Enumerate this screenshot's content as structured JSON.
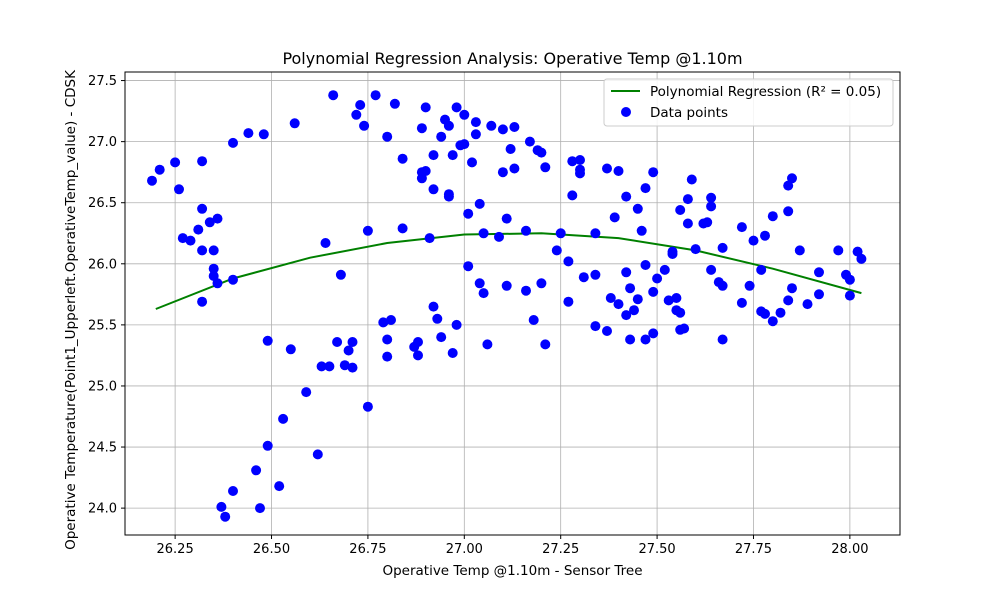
{
  "chart_data": {
    "type": "scatter",
    "title": "Polynomial Regression Analysis: Operative Temp @1.10m",
    "xlabel": "Operative Temp @1.10m - Sensor Tree",
    "ylabel": "Operative Temperature(Point1_Upperleft.OperativeTemp_value) - CDSK",
    "xlim": [
      26.12,
      28.13
    ],
    "ylim": [
      23.78,
      27.57
    ],
    "xticks": [
      26.25,
      26.5,
      26.75,
      27.0,
      27.25,
      27.5,
      27.75,
      28.0
    ],
    "xtick_labels": [
      "26.25",
      "26.50",
      "26.75",
      "27.00",
      "27.25",
      "27.50",
      "27.75",
      "28.00"
    ],
    "yticks": [
      24.0,
      24.5,
      25.0,
      25.5,
      26.0,
      26.5,
      27.0,
      27.5
    ],
    "ytick_labels": [
      "24.0",
      "24.5",
      "25.0",
      "25.5",
      "26.0",
      "26.5",
      "27.0",
      "27.5"
    ],
    "grid": true,
    "legend_position": "top-right",
    "legend": [
      {
        "label": "Polynomial Regression (R² = 0.05)",
        "kind": "line",
        "color": "#008000"
      },
      {
        "label": "Data points",
        "kind": "marker",
        "color": "#0000ff"
      }
    ],
    "regression": {
      "name": "Polynomial Regression (R² = 0.05)",
      "color": "#008000",
      "x": [
        26.2,
        26.4,
        26.6,
        26.8,
        27.0,
        27.2,
        27.4,
        27.6,
        27.8,
        28.03
      ],
      "y": [
        25.63,
        25.88,
        26.05,
        26.17,
        26.24,
        26.25,
        26.21,
        26.11,
        25.96,
        25.76
      ]
    },
    "series": [
      {
        "name": "Data points",
        "color": "#0000ff",
        "points": [
          [
            26.19,
            26.68
          ],
          [
            26.21,
            26.77
          ],
          [
            26.25,
            26.83
          ],
          [
            26.26,
            26.61
          ],
          [
            26.27,
            26.21
          ],
          [
            26.29,
            26.19
          ],
          [
            26.31,
            26.28
          ],
          [
            26.32,
            26.84
          ],
          [
            26.32,
            26.45
          ],
          [
            26.32,
            26.11
          ],
          [
            26.32,
            25.69
          ],
          [
            26.34,
            26.34
          ],
          [
            26.35,
            25.9
          ],
          [
            26.35,
            26.11
          ],
          [
            26.35,
            25.96
          ],
          [
            26.36,
            26.37
          ],
          [
            26.36,
            25.84
          ],
          [
            26.37,
            24.01
          ],
          [
            26.38,
            23.93
          ],
          [
            26.4,
            25.87
          ],
          [
            26.4,
            24.14
          ],
          [
            26.4,
            26.99
          ],
          [
            26.44,
            27.07
          ],
          [
            26.46,
            24.31
          ],
          [
            26.47,
            24.0
          ],
          [
            26.48,
            27.06
          ],
          [
            26.49,
            25.37
          ],
          [
            26.49,
            24.51
          ],
          [
            26.52,
            24.18
          ],
          [
            26.53,
            24.73
          ],
          [
            26.55,
            25.3
          ],
          [
            26.56,
            27.15
          ],
          [
            26.59,
            24.95
          ],
          [
            26.62,
            24.44
          ],
          [
            26.63,
            25.16
          ],
          [
            26.64,
            26.17
          ],
          [
            26.65,
            25.16
          ],
          [
            26.66,
            27.38
          ],
          [
            26.67,
            25.36
          ],
          [
            26.68,
            25.91
          ],
          [
            26.69,
            25.17
          ],
          [
            26.7,
            25.29
          ],
          [
            26.71,
            25.36
          ],
          [
            26.71,
            25.15
          ],
          [
            26.72,
            27.22
          ],
          [
            26.73,
            27.3
          ],
          [
            26.74,
            27.13
          ],
          [
            26.75,
            24.83
          ],
          [
            26.75,
            26.27
          ],
          [
            26.77,
            27.38
          ],
          [
            26.79,
            25.52
          ],
          [
            26.8,
            25.38
          ],
          [
            26.8,
            25.24
          ],
          [
            26.8,
            27.04
          ],
          [
            26.81,
            25.54
          ],
          [
            26.82,
            27.31
          ],
          [
            26.84,
            26.29
          ],
          [
            26.84,
            26.86
          ],
          [
            26.87,
            25.32
          ],
          [
            26.88,
            25.36
          ],
          [
            26.88,
            25.25
          ],
          [
            26.89,
            27.11
          ],
          [
            26.89,
            26.75
          ],
          [
            26.89,
            26.7
          ],
          [
            26.9,
            27.28
          ],
          [
            26.9,
            26.76
          ],
          [
            26.91,
            26.21
          ],
          [
            26.92,
            26.61
          ],
          [
            26.92,
            26.89
          ],
          [
            26.92,
            25.65
          ],
          [
            26.93,
            25.55
          ],
          [
            26.94,
            25.4
          ],
          [
            26.94,
            27.04
          ],
          [
            26.95,
            27.18
          ],
          [
            26.96,
            26.57
          ],
          [
            26.96,
            26.55
          ],
          [
            26.96,
            27.13
          ],
          [
            26.97,
            26.89
          ],
          [
            26.97,
            25.27
          ],
          [
            26.98,
            27.28
          ],
          [
            26.98,
            25.5
          ],
          [
            26.99,
            26.97
          ],
          [
            27.0,
            26.98
          ],
          [
            27.0,
            27.22
          ],
          [
            27.01,
            26.41
          ],
          [
            27.01,
            25.98
          ],
          [
            27.02,
            26.83
          ],
          [
            27.03,
            27.16
          ],
          [
            27.03,
            27.06
          ],
          [
            27.04,
            25.84
          ],
          [
            27.04,
            26.49
          ],
          [
            27.05,
            26.25
          ],
          [
            27.05,
            25.76
          ],
          [
            27.06,
            25.34
          ],
          [
            27.07,
            27.13
          ],
          [
            27.09,
            26.22
          ],
          [
            27.1,
            27.1
          ],
          [
            27.1,
            26.75
          ],
          [
            27.11,
            26.37
          ],
          [
            27.11,
            25.82
          ],
          [
            27.12,
            26.94
          ],
          [
            27.13,
            26.78
          ],
          [
            27.13,
            27.12
          ],
          [
            27.16,
            25.78
          ],
          [
            27.16,
            26.27
          ],
          [
            27.17,
            27.0
          ],
          [
            27.18,
            25.54
          ],
          [
            27.19,
            26.93
          ],
          [
            27.2,
            25.84
          ],
          [
            27.2,
            26.91
          ],
          [
            27.21,
            25.34
          ],
          [
            27.21,
            26.79
          ],
          [
            27.24,
            26.11
          ],
          [
            27.25,
            26.25
          ],
          [
            27.27,
            26.02
          ],
          [
            27.27,
            25.69
          ],
          [
            27.28,
            26.84
          ],
          [
            27.28,
            26.56
          ],
          [
            27.3,
            26.85
          ],
          [
            27.3,
            26.77
          ],
          [
            27.3,
            26.74
          ],
          [
            27.31,
            25.89
          ],
          [
            27.34,
            25.49
          ],
          [
            27.34,
            26.25
          ],
          [
            27.34,
            25.91
          ],
          [
            27.37,
            26.78
          ],
          [
            27.37,
            25.45
          ],
          [
            27.38,
            25.72
          ],
          [
            27.39,
            26.38
          ],
          [
            27.4,
            25.67
          ],
          [
            27.4,
            26.76
          ],
          [
            27.42,
            25.58
          ],
          [
            27.42,
            26.55
          ],
          [
            27.42,
            25.93
          ],
          [
            27.43,
            25.38
          ],
          [
            27.43,
            25.8
          ],
          [
            27.44,
            25.62
          ],
          [
            27.45,
            25.71
          ],
          [
            27.45,
            26.45
          ],
          [
            27.46,
            26.27
          ],
          [
            27.47,
            25.99
          ],
          [
            27.47,
            25.38
          ],
          [
            27.47,
            26.62
          ],
          [
            27.49,
            25.43
          ],
          [
            27.49,
            25.77
          ],
          [
            27.49,
            26.75
          ],
          [
            27.5,
            25.88
          ],
          [
            27.52,
            25.95
          ],
          [
            27.53,
            25.7
          ],
          [
            27.54,
            26.08
          ],
          [
            27.54,
            26.1
          ],
          [
            27.55,
            25.62
          ],
          [
            27.55,
            25.72
          ],
          [
            27.56,
            25.6
          ],
          [
            27.56,
            26.44
          ],
          [
            27.56,
            25.46
          ],
          [
            27.57,
            25.47
          ],
          [
            27.58,
            26.33
          ],
          [
            27.58,
            26.53
          ],
          [
            27.59,
            26.69
          ],
          [
            27.6,
            26.12
          ],
          [
            27.62,
            26.33
          ],
          [
            27.63,
            26.34
          ],
          [
            27.64,
            26.47
          ],
          [
            27.64,
            26.54
          ],
          [
            27.64,
            25.95
          ],
          [
            27.66,
            25.85
          ],
          [
            27.67,
            25.82
          ],
          [
            27.67,
            25.38
          ],
          [
            27.67,
            26.13
          ],
          [
            27.72,
            26.3
          ],
          [
            27.72,
            25.68
          ],
          [
            27.74,
            25.82
          ],
          [
            27.75,
            26.19
          ],
          [
            27.77,
            25.61
          ],
          [
            27.77,
            25.95
          ],
          [
            27.78,
            25.59
          ],
          [
            27.78,
            26.23
          ],
          [
            27.8,
            26.39
          ],
          [
            27.8,
            25.53
          ],
          [
            27.82,
            25.6
          ],
          [
            27.84,
            26.64
          ],
          [
            27.84,
            25.7
          ],
          [
            27.84,
            26.43
          ],
          [
            27.85,
            26.7
          ],
          [
            27.85,
            25.8
          ],
          [
            27.87,
            26.11
          ],
          [
            27.89,
            25.67
          ],
          [
            27.92,
            25.93
          ],
          [
            27.92,
            25.75
          ],
          [
            27.97,
            26.11
          ],
          [
            27.99,
            25.91
          ],
          [
            28.0,
            25.87
          ],
          [
            28.0,
            25.74
          ],
          [
            28.02,
            26.1
          ],
          [
            28.03,
            26.04
          ]
        ]
      }
    ]
  }
}
